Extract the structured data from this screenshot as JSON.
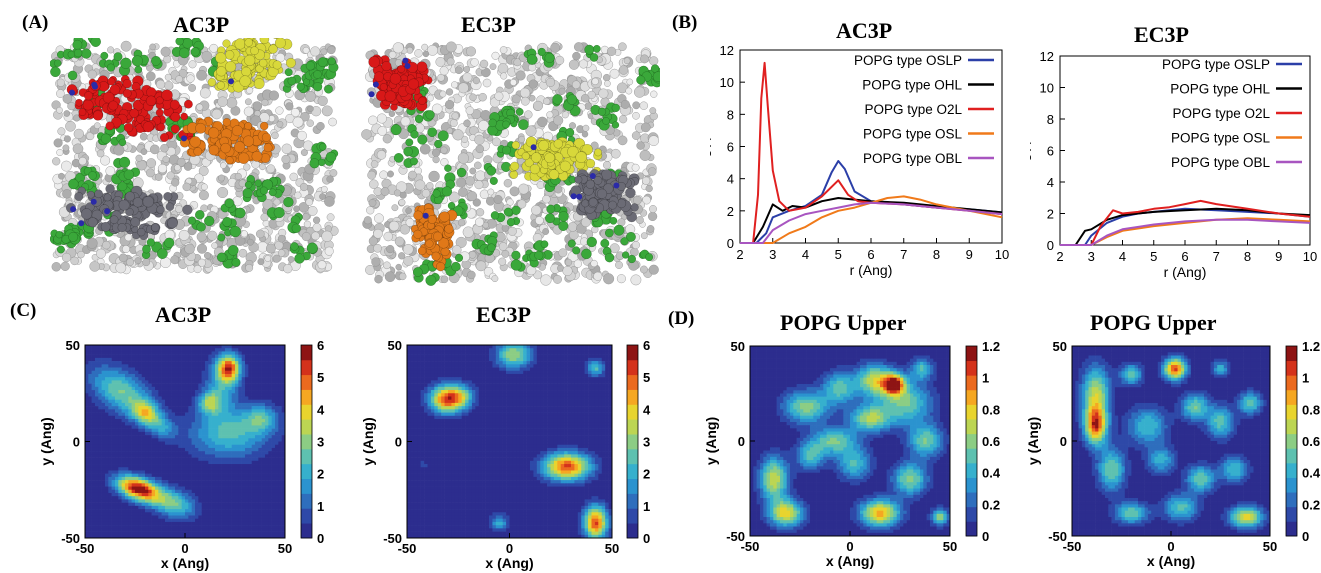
{
  "panels": {
    "A": {
      "label": "(A)",
      "titles": [
        "AC3P",
        "EC3P"
      ],
      "palette": {
        "membrane": "#c9c9c9",
        "lipid_green": "#3aa83a",
        "peptide_red": "#d81818",
        "peptide_yellow": "#d8d83a",
        "peptide_orange": "#e07818",
        "peptide_gray": "#6b6b75",
        "bead_blue": "#2a2aa8"
      }
    },
    "B": {
      "label": "(B)",
      "titles": [
        "AC3P",
        "EC3P"
      ],
      "legend": [
        "POPG type OSLP",
        "POPG type OHL",
        "POPG type O2L",
        "POPG type OSL",
        "POPG type OBL"
      ]
    },
    "C": {
      "label": "(C)",
      "titles": [
        "AC3P",
        "EC3P"
      ],
      "colorbar_ticks": [
        "6",
        "5",
        "4",
        "3",
        "2",
        "1",
        "0"
      ]
    },
    "D": {
      "label": "(D)",
      "titles": [
        "POPG Upper",
        "POPG Upper"
      ],
      "colorbar_ticks": [
        "1.2",
        "1",
        "0.8",
        "0.6",
        "0.4",
        "0.2",
        "0"
      ]
    }
  },
  "map_axes": {
    "xlabel": "x (Ang)",
    "ylabel": "y (Ang)",
    "xticks": [
      "-50",
      "0",
      "50"
    ],
    "yticks": [
      "50",
      "0",
      "-50"
    ]
  },
  "chart_data": [
    {
      "type": "line",
      "title": "AC3P",
      "xlabel": "r (Ang)",
      "ylabel": "g(r)",
      "xlim": [
        2,
        10
      ],
      "ylim": [
        0,
        12
      ],
      "xticks": [
        2,
        3,
        4,
        5,
        6,
        7,
        8,
        9,
        10
      ],
      "yticks": [
        0,
        2,
        4,
        6,
        8,
        10,
        12
      ],
      "legend_position": "top-right",
      "series": [
        {
          "name": "POPG type OSLP",
          "color": "#2b3fa8",
          "x": [
            2.0,
            2.5,
            2.8,
            3.0,
            3.5,
            4.0,
            4.5,
            4.8,
            5.0,
            5.2,
            5.5,
            6.0,
            6.5,
            7.0,
            8.0,
            9.0,
            10.0
          ],
          "y": [
            0,
            0,
            0.6,
            1.6,
            2.0,
            2.3,
            3.0,
            4.4,
            5.1,
            4.6,
            3.2,
            2.6,
            2.5,
            2.4,
            2.2,
            2.1,
            1.9
          ]
        },
        {
          "name": "POPG type OHL",
          "color": "#000000",
          "x": [
            2.0,
            2.4,
            2.7,
            3.0,
            3.3,
            3.6,
            4.0,
            4.5,
            5.0,
            5.5,
            6.0,
            7.0,
            8.0,
            9.0,
            10.0
          ],
          "y": [
            0,
            0,
            1.0,
            2.4,
            2.0,
            2.3,
            2.2,
            2.6,
            2.8,
            2.7,
            2.6,
            2.5,
            2.3,
            2.1,
            1.9
          ]
        },
        {
          "name": "POPG type O2L",
          "color": "#e02020",
          "x": [
            2.0,
            2.4,
            2.55,
            2.65,
            2.75,
            2.85,
            3.0,
            3.2,
            3.5,
            4.0,
            4.5,
            5.0,
            5.3,
            5.6,
            6.0,
            7.0,
            8.0,
            9.0,
            10.0
          ],
          "y": [
            0,
            0,
            3.0,
            9.0,
            11.2,
            8.5,
            4.5,
            2.6,
            2.0,
            2.2,
            2.9,
            3.9,
            3.0,
            2.6,
            2.5,
            2.4,
            2.2,
            2.0,
            1.8
          ]
        },
        {
          "name": "POPG type OSL",
          "color": "#f07a1a",
          "x": [
            2.0,
            3.0,
            3.5,
            4.0,
            4.5,
            5.0,
            5.5,
            6.0,
            6.5,
            7.0,
            7.5,
            8.0,
            9.0,
            10.0
          ],
          "y": [
            0,
            0,
            0.6,
            1.0,
            1.6,
            2.0,
            2.2,
            2.5,
            2.8,
            2.9,
            2.7,
            2.4,
            2.0,
            1.6
          ]
        },
        {
          "name": "POPG type OBL",
          "color": "#a855c0",
          "x": [
            2.0,
            2.7,
            3.0,
            3.5,
            4.0,
            4.5,
            5.0,
            5.5,
            6.0,
            7.0,
            8.0,
            9.0,
            10.0
          ],
          "y": [
            0,
            0,
            0.8,
            1.4,
            1.8,
            2.0,
            2.2,
            2.4,
            2.5,
            2.4,
            2.2,
            2.0,
            1.8
          ]
        }
      ]
    },
    {
      "type": "line",
      "title": "EC3P",
      "xlabel": "r (Ang)",
      "ylabel": "g(r)",
      "xlim": [
        2,
        10
      ],
      "ylim": [
        0,
        12
      ],
      "xticks": [
        2,
        3,
        4,
        5,
        6,
        7,
        8,
        9,
        10
      ],
      "yticks": [
        0,
        2,
        4,
        6,
        8,
        10,
        12
      ],
      "legend_position": "top-right",
      "series": [
        {
          "name": "POPG type OSLP",
          "color": "#2b3fa8",
          "x": [
            2.0,
            2.8,
            3.0,
            3.5,
            4.0,
            4.5,
            5.0,
            5.5,
            6.0,
            7.0,
            8.0,
            9.0,
            10.0
          ],
          "y": [
            0,
            0,
            0.6,
            1.4,
            1.8,
            2.0,
            2.1,
            2.2,
            2.3,
            2.2,
            2.1,
            2.0,
            1.8
          ]
        },
        {
          "name": "POPG type OHL",
          "color": "#000000",
          "x": [
            2.0,
            2.5,
            2.8,
            3.0,
            3.5,
            4.0,
            5.0,
            6.0,
            7.0,
            8.0,
            9.0,
            10.0
          ],
          "y": [
            0,
            0,
            0.9,
            1.0,
            1.6,
            1.9,
            2.1,
            2.2,
            2.3,
            2.2,
            2.0,
            1.9
          ]
        },
        {
          "name": "POPG type O2L",
          "color": "#e02020",
          "x": [
            2.0,
            3.0,
            3.3,
            3.7,
            4.0,
            4.5,
            5.0,
            5.5,
            6.0,
            6.5,
            7.0,
            8.0,
            9.0,
            10.0
          ],
          "y": [
            0,
            0,
            1.2,
            2.2,
            2.0,
            2.1,
            2.3,
            2.4,
            2.6,
            2.8,
            2.6,
            2.3,
            2.0,
            1.8
          ]
        },
        {
          "name": "POPG type OSL",
          "color": "#f07a1a",
          "x": [
            2.0,
            3.0,
            3.5,
            4.0,
            5.0,
            6.0,
            7.0,
            8.0,
            9.0,
            10.0
          ],
          "y": [
            0,
            0,
            0.5,
            0.9,
            1.2,
            1.4,
            1.6,
            1.7,
            1.6,
            1.5
          ]
        },
        {
          "name": "POPG type OBL",
          "color": "#a855c0",
          "x": [
            2.0,
            3.0,
            3.5,
            4.0,
            5.0,
            6.0,
            7.0,
            8.0,
            9.0,
            10.0
          ],
          "y": [
            0,
            0,
            0.6,
            1.0,
            1.3,
            1.5,
            1.6,
            1.6,
            1.5,
            1.4
          ]
        }
      ]
    },
    {
      "type": "heatmap",
      "title": "AC3P",
      "xlabel": "x (Ang)",
      "ylabel": "y (Ang)",
      "xlim": [
        -50,
        50
      ],
      "ylim": [
        -50,
        50
      ],
      "zlim": [
        0,
        6
      ],
      "blobs": [
        {
          "x": -32,
          "y": 26,
          "sx": 12,
          "sy": 7,
          "rot": -35,
          "amp": 3.0
        },
        {
          "x": -20,
          "y": 15,
          "sx": 5,
          "sy": 4,
          "rot": -35,
          "amp": 3.2
        },
        {
          "x": -12,
          "y": 8,
          "sx": 6,
          "sy": 4,
          "rot": -35,
          "amp": 1.8
        },
        {
          "x": 22,
          "y": 38,
          "sx": 4,
          "sy": 5,
          "rot": 0,
          "amp": 5.2
        },
        {
          "x": 18,
          "y": 28,
          "sx": 6,
          "sy": 10,
          "rot": 0,
          "amp": 2.0
        },
        {
          "x": 12,
          "y": 20,
          "sx": 4,
          "sy": 4,
          "rot": 0,
          "amp": 2.6
        },
        {
          "x": 22,
          "y": 4,
          "sx": 14,
          "sy": 9,
          "rot": 0,
          "amp": 2.6
        },
        {
          "x": 38,
          "y": 12,
          "sx": 6,
          "sy": 5,
          "rot": 0,
          "amp": 2.2
        },
        {
          "x": -22,
          "y": -25,
          "sx": 7,
          "sy": 4,
          "rot": -20,
          "amp": 5.8
        },
        {
          "x": -6,
          "y": -32,
          "sx": 8,
          "sy": 5,
          "rot": -20,
          "amp": 3.0
        },
        {
          "x": -30,
          "y": -22,
          "sx": 6,
          "sy": 4,
          "rot": -20,
          "amp": 1.6
        }
      ]
    },
    {
      "type": "heatmap",
      "title": "EC3P",
      "xlabel": "x (Ang)",
      "ylabel": "y (Ang)",
      "xlim": [
        -50,
        50
      ],
      "ylim": [
        -50,
        50
      ],
      "zlim": [
        0,
        6
      ],
      "blobs": [
        {
          "x": 2,
          "y": 45,
          "sx": 6,
          "sy": 5,
          "rot": 0,
          "amp": 3.5
        },
        {
          "x": 42,
          "y": 38,
          "sx": 3,
          "sy": 3,
          "rot": 0,
          "amp": 2.6
        },
        {
          "x": -30,
          "y": 22,
          "sx": 6,
          "sy": 5,
          "rot": 0,
          "amp": 5.9
        },
        {
          "x": -22,
          "y": 24,
          "sx": 4,
          "sy": 4,
          "rot": 0,
          "amp": 1.5
        },
        {
          "x": 28,
          "y": -13,
          "sx": 8,
          "sy": 5,
          "rot": 0,
          "amp": 5.6
        },
        {
          "x": 42,
          "y": -42,
          "sx": 4,
          "sy": 6,
          "rot": 0,
          "amp": 5.6
        },
        {
          "x": -5,
          "y": -42,
          "sx": 3,
          "sy": 3,
          "rot": 0,
          "amp": 2.2
        },
        {
          "x": -42,
          "y": -12,
          "sx": 1.5,
          "sy": 1.5,
          "rot": 0,
          "amp": 0.8
        }
      ]
    },
    {
      "type": "heatmap",
      "title": "POPG Upper",
      "xlabel": "x (Ang)",
      "ylabel": "y (Ang)",
      "xlim": [
        -50,
        50
      ],
      "ylim": [
        -50,
        50
      ],
      "zlim": [
        0,
        1.2
      ],
      "blobs": [
        {
          "x": 22,
          "y": 30,
          "sx": 4,
          "sy": 4,
          "rot": 0,
          "amp": 1.1
        },
        {
          "x": 12,
          "y": 32,
          "sx": 6,
          "sy": 6,
          "rot": 0,
          "amp": 0.75
        },
        {
          "x": 28,
          "y": 20,
          "sx": 9,
          "sy": 8,
          "rot": 0,
          "amp": 0.6
        },
        {
          "x": -22,
          "y": 18,
          "sx": 8,
          "sy": 6,
          "rot": 0,
          "amp": 0.65
        },
        {
          "x": -5,
          "y": 28,
          "sx": 6,
          "sy": 6,
          "rot": 0,
          "amp": 0.55
        },
        {
          "x": 10,
          "y": 12,
          "sx": 7,
          "sy": 5,
          "rot": 0,
          "amp": 0.7
        },
        {
          "x": -8,
          "y": 0,
          "sx": 8,
          "sy": 5,
          "rot": 0,
          "amp": 0.6
        },
        {
          "x": 2,
          "y": -12,
          "sx": 6,
          "sy": 6,
          "rot": 0,
          "amp": 0.5
        },
        {
          "x": -38,
          "y": -20,
          "sx": 5,
          "sy": 8,
          "rot": 0,
          "amp": 0.8
        },
        {
          "x": -32,
          "y": -38,
          "sx": 6,
          "sy": 5,
          "rot": 0,
          "amp": 0.85
        },
        {
          "x": 15,
          "y": -38,
          "sx": 7,
          "sy": 5,
          "rot": 0,
          "amp": 0.95
        },
        {
          "x": 30,
          "y": -20,
          "sx": 6,
          "sy": 6,
          "rot": 0,
          "amp": 0.65
        },
        {
          "x": 38,
          "y": 0,
          "sx": 6,
          "sy": 6,
          "rot": 0,
          "amp": 0.6
        },
        {
          "x": 45,
          "y": -40,
          "sx": 3,
          "sy": 3,
          "rot": 0,
          "amp": 0.7
        },
        {
          "x": -20,
          "y": -8,
          "sx": 5,
          "sy": 5,
          "rot": 0,
          "amp": 0.5
        },
        {
          "x": 36,
          "y": 38,
          "sx": 4,
          "sy": 4,
          "rot": 0,
          "amp": 0.5
        }
      ]
    },
    {
      "type": "heatmap",
      "title": "POPG Upper",
      "xlabel": "x (Ang)",
      "ylabel": "y (Ang)",
      "xlim": [
        -50,
        50
      ],
      "ylim": [
        -50,
        50
      ],
      "zlim": [
        0,
        1.2
      ],
      "blobs": [
        {
          "x": 2,
          "y": 38,
          "sx": 4,
          "sy": 4,
          "rot": 0,
          "amp": 1.15
        },
        {
          "x": -38,
          "y": 8,
          "sx": 4,
          "sy": 7,
          "rot": 0,
          "amp": 1.05
        },
        {
          "x": -38,
          "y": 25,
          "sx": 5,
          "sy": 10,
          "rot": 0,
          "amp": 0.75
        },
        {
          "x": -30,
          "y": -15,
          "sx": 5,
          "sy": 8,
          "rot": 0,
          "amp": 0.6
        },
        {
          "x": -20,
          "y": 35,
          "sx": 4,
          "sy": 4,
          "rot": 0,
          "amp": 0.55
        },
        {
          "x": -12,
          "y": 8,
          "sx": 7,
          "sy": 7,
          "rot": 0,
          "amp": 0.5
        },
        {
          "x": 12,
          "y": 18,
          "sx": 5,
          "sy": 5,
          "rot": 0,
          "amp": 0.6
        },
        {
          "x": 15,
          "y": -20,
          "sx": 5,
          "sy": 5,
          "rot": 0,
          "amp": 0.6
        },
        {
          "x": 25,
          "y": 10,
          "sx": 5,
          "sy": 6,
          "rot": 0,
          "amp": 0.55
        },
        {
          "x": 40,
          "y": 20,
          "sx": 4,
          "sy": 4,
          "rot": 0,
          "amp": 0.6
        },
        {
          "x": 38,
          "y": -40,
          "sx": 6,
          "sy": 4,
          "rot": 0,
          "amp": 0.85
        },
        {
          "x": -20,
          "y": -38,
          "sx": 6,
          "sy": 4,
          "rot": 0,
          "amp": 0.6
        },
        {
          "x": 5,
          "y": -35,
          "sx": 6,
          "sy": 5,
          "rot": 0,
          "amp": 0.55
        },
        {
          "x": 32,
          "y": -15,
          "sx": 5,
          "sy": 5,
          "rot": 0,
          "amp": 0.5
        },
        {
          "x": -5,
          "y": -10,
          "sx": 5,
          "sy": 5,
          "rot": 0,
          "amp": 0.45
        },
        {
          "x": 25,
          "y": 38,
          "sx": 3,
          "sy": 3,
          "rot": 0,
          "amp": 0.45
        }
      ]
    }
  ],
  "contour_colors": [
    "#2c2d8e",
    "#2e49a8",
    "#2e6ebd",
    "#2b93cf",
    "#36b0cd",
    "#5ec1b0",
    "#8ccd84",
    "#bcd553",
    "#e8d42e",
    "#f5a722",
    "#eb6a1f",
    "#d4321b",
    "#8e1414"
  ]
}
